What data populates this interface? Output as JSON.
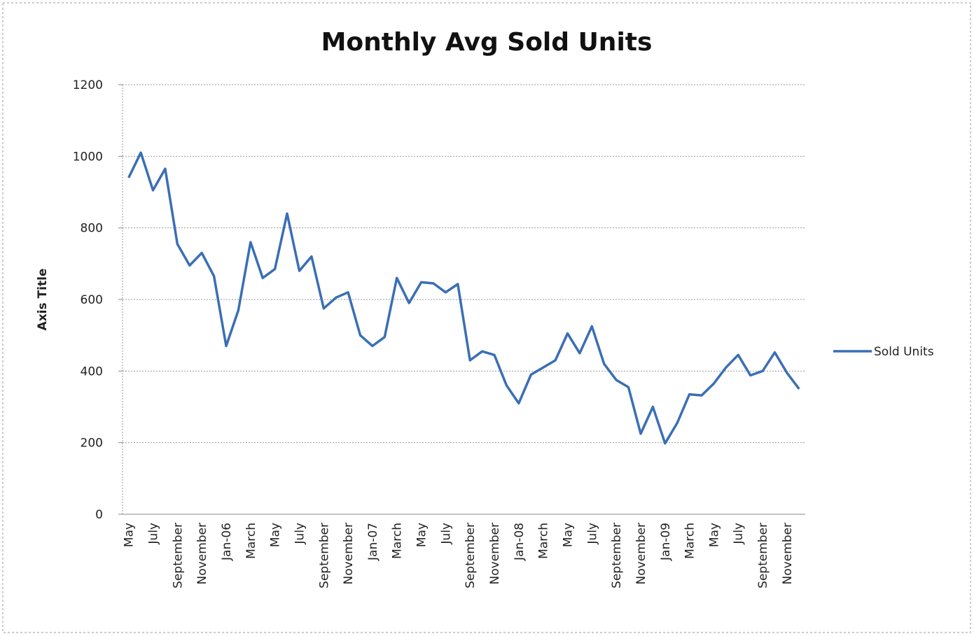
{
  "chart_data": {
    "type": "line",
    "title": "Monthly Avg Sold Units",
    "y_label": "Axis Title",
    "categories": [
      "May",
      null,
      "July",
      null,
      "September",
      null,
      "November",
      null,
      "Jan-06",
      null,
      "March",
      null,
      "May",
      null,
      "July",
      null,
      "September",
      null,
      "November",
      null,
      "Jan-07",
      null,
      "March",
      null,
      "May",
      null,
      "July",
      null,
      "September",
      null,
      "November",
      null,
      "Jan-08",
      null,
      "March",
      null,
      "May",
      null,
      "July",
      null,
      "September",
      null,
      "November",
      null,
      "Jan-09",
      null,
      "March",
      null,
      "May",
      null,
      "July",
      null,
      "September",
      null,
      "November",
      null
    ],
    "series": [
      {
        "name": "Sold Units",
        "color": "#3a6fb5",
        "values": [
          940,
          1010,
          905,
          965,
          755,
          695,
          730,
          665,
          470,
          570,
          760,
          660,
          685,
          840,
          680,
          720,
          575,
          605,
          620,
          500,
          470,
          495,
          660,
          590,
          648,
          645,
          620,
          643,
          430,
          455,
          445,
          360,
          310,
          390,
          410,
          430,
          505,
          450,
          525,
          420,
          375,
          355,
          225,
          300,
          198,
          255,
          335,
          332,
          365,
          410,
          445,
          388,
          400,
          452,
          395,
          350
        ]
      }
    ],
    "ylim": [
      0,
      1200
    ],
    "yticks": [
      0,
      200,
      400,
      600,
      800,
      1000,
      1200
    ],
    "grid": true,
    "legend": "right"
  }
}
